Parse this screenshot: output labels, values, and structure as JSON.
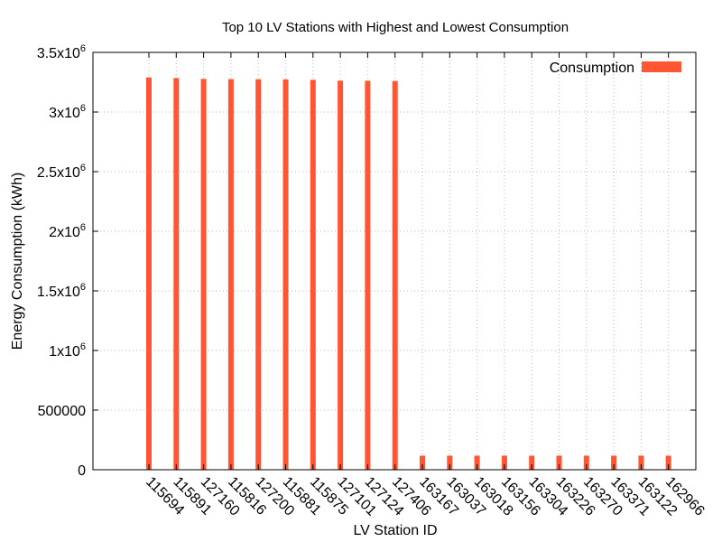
{
  "chart_data": {
    "type": "bar",
    "title": "Top 10 LV Stations with Highest and Lowest Consumption",
    "xlabel": "LV Station ID",
    "ylabel": "Energy Consumption (kWh)",
    "ylim": [
      0,
      3500000
    ],
    "yticks": [
      {
        "value": 0,
        "base": "0",
        "exp": ""
      },
      {
        "value": 500000,
        "base": "500000",
        "exp": ""
      },
      {
        "value": 1000000,
        "base": "1x10",
        "exp": "6"
      },
      {
        "value": 1500000,
        "base": "1.5x10",
        "exp": "6"
      },
      {
        "value": 2000000,
        "base": "2x10",
        "exp": "6"
      },
      {
        "value": 2500000,
        "base": "2.5x10",
        "exp": "6"
      },
      {
        "value": 3000000,
        "base": "3x10",
        "exp": "6"
      },
      {
        "value": 3500000,
        "base": "3.5x10",
        "exp": "6"
      }
    ],
    "grid": true,
    "legend_position": "top-right",
    "categories": [
      "115694",
      "115891",
      "127160",
      "115816",
      "127200",
      "115881",
      "115875",
      "127101",
      "127124",
      "127406",
      "163167",
      "163037",
      "163018",
      "163156",
      "163304",
      "163226",
      "163270",
      "163371",
      "163122",
      "162966"
    ],
    "series": [
      {
        "name": "Consumption",
        "color": "#ff5533",
        "values": [
          3290000,
          3285000,
          3278000,
          3276000,
          3275000,
          3274000,
          3270000,
          3263000,
          3262000,
          3260000,
          118000,
          118000,
          118000,
          118000,
          118000,
          118000,
          118000,
          118000,
          118000,
          118000
        ]
      }
    ]
  }
}
